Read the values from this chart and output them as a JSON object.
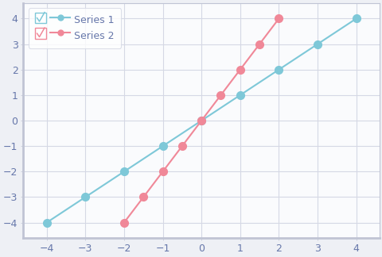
{
  "series1_x": [
    -4,
    -3,
    -2,
    -1,
    0,
    1,
    2,
    3,
    4
  ],
  "series1_y": [
    -4,
    -3,
    -2,
    -1,
    0,
    1,
    2,
    3,
    4
  ],
  "series2_x": [
    -2,
    -1.5,
    -1,
    -0.5,
    0,
    0.5,
    1,
    1.5,
    2
  ],
  "series2_y": [
    -4,
    -3,
    -2,
    -1,
    0,
    1,
    2,
    3,
    4
  ],
  "series1_color": "#7EC8D8",
  "series2_color": "#F08898",
  "series1_label": "Series 1",
  "series2_label": "Series 2",
  "xlim": [
    -4.6,
    4.6
  ],
  "ylim": [
    -4.6,
    4.6
  ],
  "xticks": [
    -4,
    -3,
    -2,
    -1,
    0,
    1,
    2,
    3,
    4
  ],
  "yticks": [
    -4,
    -3,
    -2,
    -1,
    0,
    1,
    2,
    3,
    4
  ],
  "background_color": "#EEF0F5",
  "plot_bg_color": "#FAFBFD",
  "grid_color": "#D5D8E5",
  "spine_color": "#C0C4D4",
  "thick_spine_linewidth": 2.0,
  "thin_spine_linewidth": 0.8,
  "line_width": 1.5,
  "marker_size": 7,
  "tick_label_color": "#6677AA",
  "font_size": 9
}
